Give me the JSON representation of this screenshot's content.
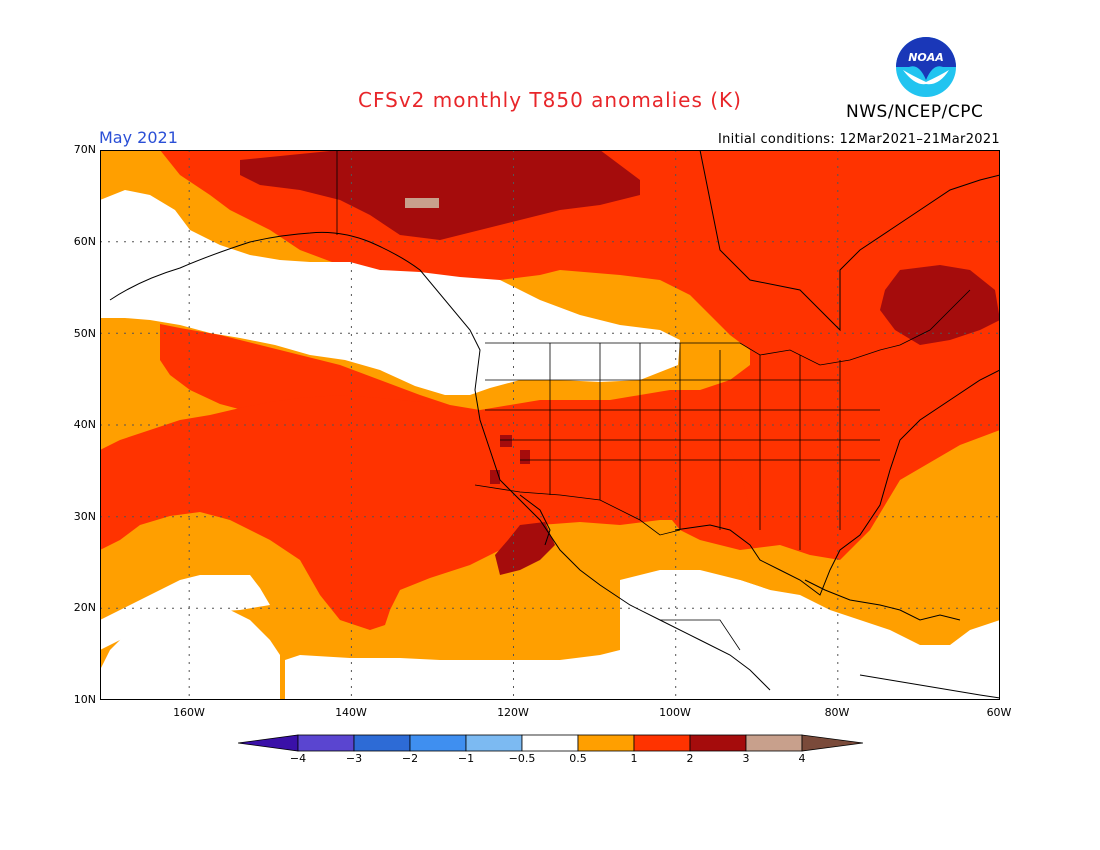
{
  "title": "CFSv2 monthly T850 anomalies (K)",
  "agency": "NWS/NCEP/CPC",
  "logo_text": "NOAA",
  "valid_month": "May 2021",
  "initial_conditions": "Initial conditions: 12Mar2021–21Mar2021",
  "lat_ticks": [
    "70N",
    "60N",
    "50N",
    "40N",
    "30N",
    "20N",
    "10N"
  ],
  "lon_ticks": [
    "160W",
    "140W",
    "120W",
    "100W",
    "80W",
    "60W"
  ],
  "map_extent": {
    "lon_min": -171,
    "lon_max": -60,
    "lat_min": 10,
    "lat_max": 70
  },
  "legend": {
    "labels": [
      "−4",
      "−3",
      "−2",
      "−1",
      "−0.5",
      "0.5",
      "1",
      "2",
      "3",
      "4"
    ],
    "colors": [
      "#3a10a8",
      "#5a45d0",
      "#2d6bd6",
      "#3f8ff0",
      "#7cbaf2",
      "#ffffff",
      "#ff9f00",
      "#ff3300",
      "#a50c0c",
      "#c8a08c",
      "#7a4a3a"
    ],
    "bins": [
      "< -4",
      "-4 to -3",
      "-3 to -2",
      "-2 to -1",
      "-1 to -0.5",
      "-0.5 to 0.5",
      "0.5 to 1",
      "1 to 2",
      "2 to 3",
      "3 to 4",
      "> 4"
    ]
  },
  "colors": {
    "white_bin": "#ffffff",
    "orange_bin": "#ff9f00",
    "red_bin": "#ff3300",
    "darkred_bin": "#a50c0c",
    "tan_bin": "#c8a08c",
    "title": "#e8262a",
    "month": "#2a4fd6"
  }
}
